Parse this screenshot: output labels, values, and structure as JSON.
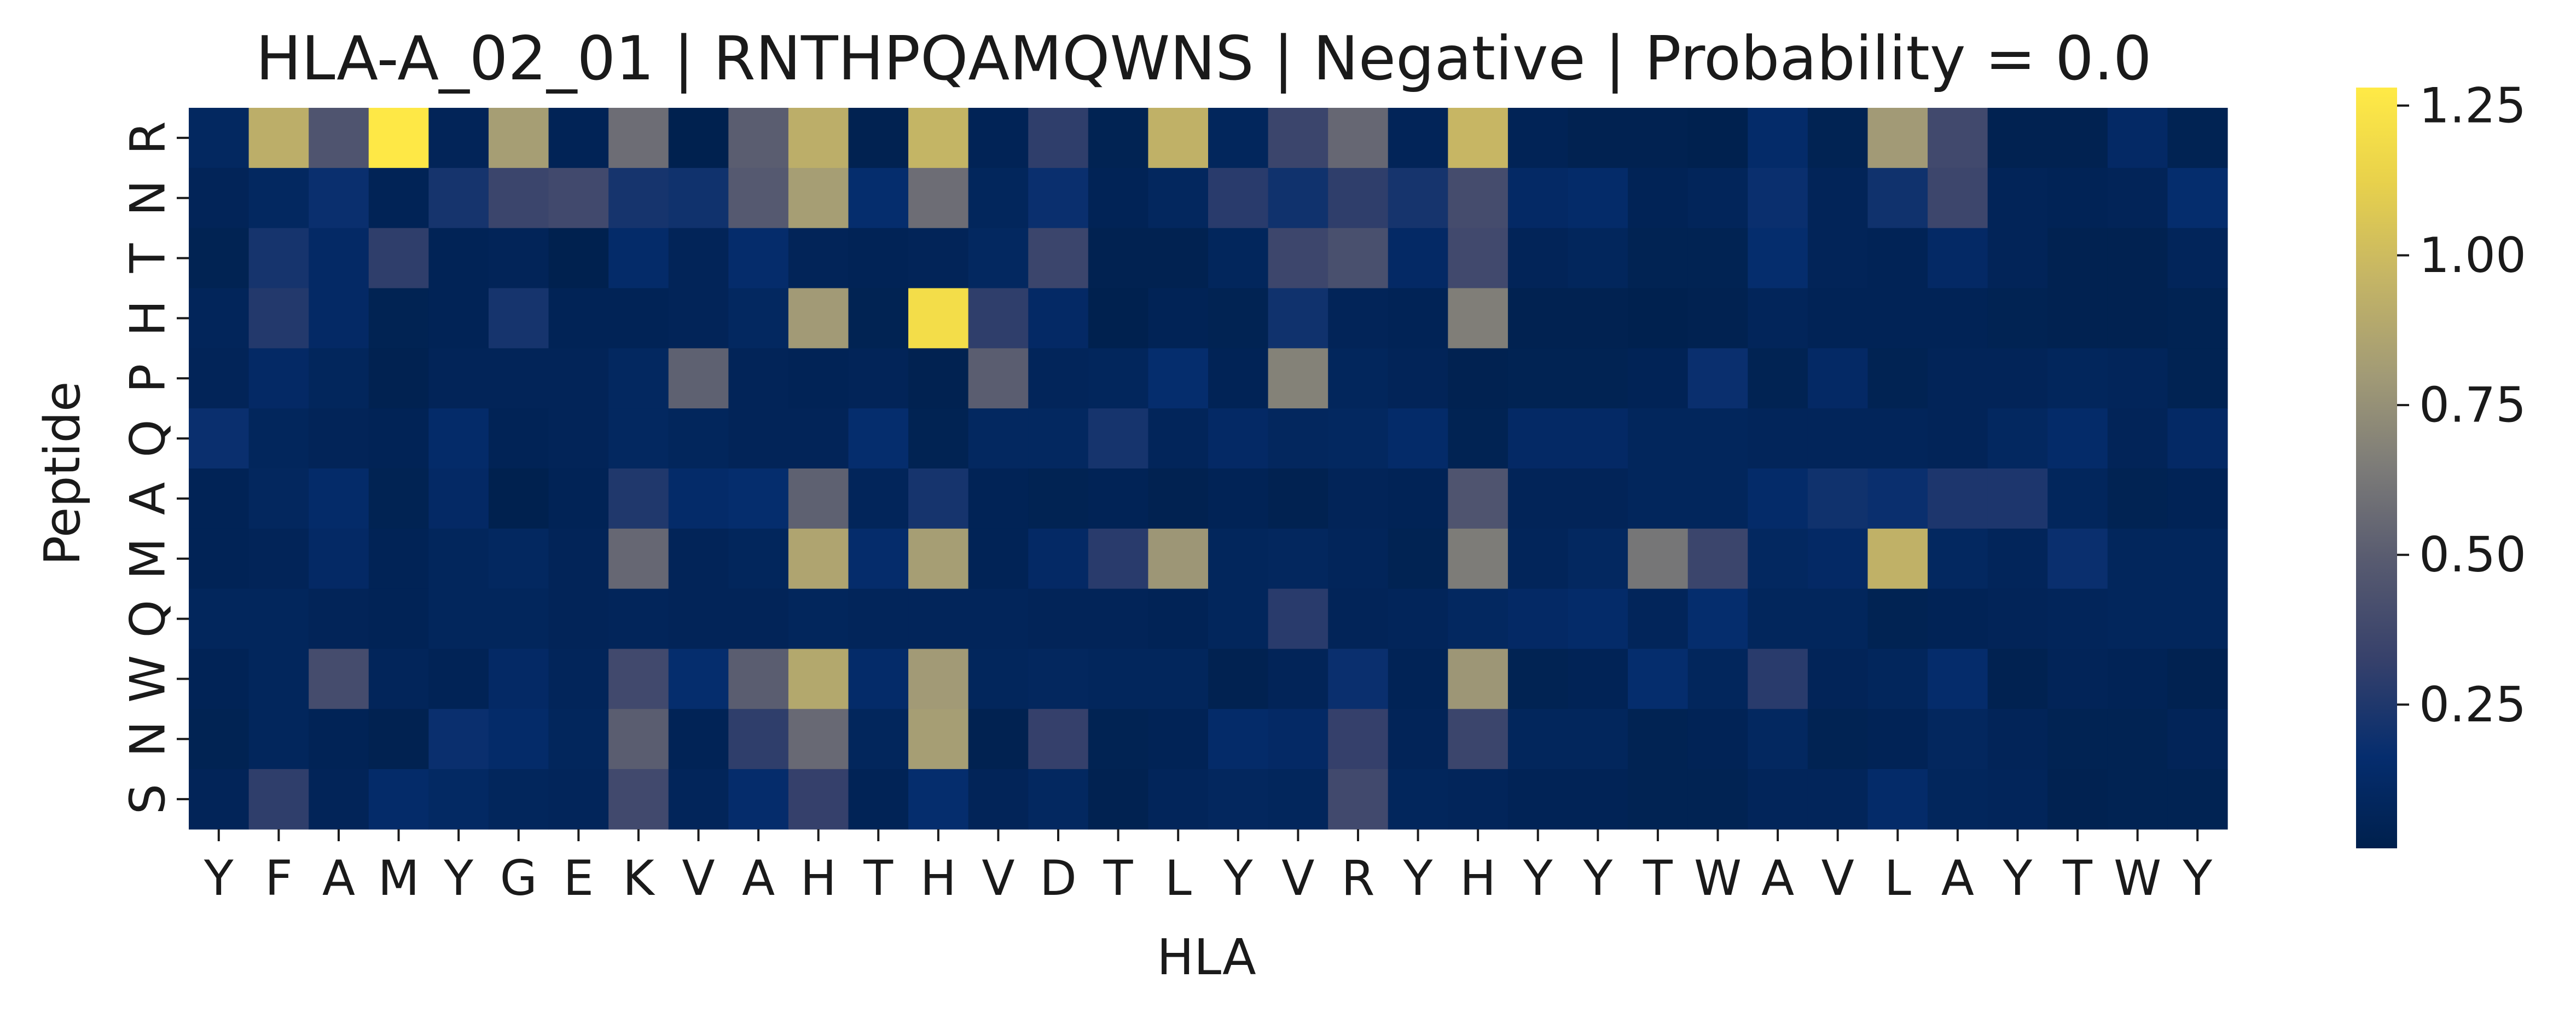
{
  "chart_data": {
    "type": "heatmap",
    "title": "HLA-A_02_01 | RNTHPQAMQWNS | Negative | Probability = 0.0",
    "xlabel": "HLA",
    "ylabel": "Peptide",
    "x_categories": [
      "Y",
      "F",
      "A",
      "M",
      "Y",
      "G",
      "E",
      "K",
      "V",
      "A",
      "H",
      "T",
      "H",
      "V",
      "D",
      "T",
      "L",
      "Y",
      "V",
      "R",
      "Y",
      "H",
      "Y",
      "Y",
      "T",
      "W",
      "A",
      "V",
      "L",
      "A",
      "Y",
      "T",
      "W",
      "Y"
    ],
    "y_categories": [
      "R",
      "N",
      "T",
      "H",
      "P",
      "Q",
      "A",
      "M",
      "Q",
      "W",
      "N",
      "S"
    ],
    "values": [
      [
        0.1,
        0.92,
        0.45,
        1.27,
        0.06,
        0.82,
        0.05,
        0.58,
        0.02,
        0.5,
        0.92,
        0.03,
        0.96,
        0.05,
        0.3,
        0.04,
        0.94,
        0.08,
        0.35,
        0.55,
        0.06,
        0.97,
        0.05,
        0.03,
        0.03,
        0.02,
        0.14,
        0.04,
        0.8,
        0.38,
        0.03,
        0.03,
        0.12,
        0.04
      ],
      [
        0.06,
        0.1,
        0.18,
        0.05,
        0.22,
        0.35,
        0.38,
        0.22,
        0.2,
        0.48,
        0.82,
        0.16,
        0.58,
        0.08,
        0.18,
        0.05,
        0.09,
        0.28,
        0.2,
        0.3,
        0.22,
        0.4,
        0.12,
        0.14,
        0.05,
        0.07,
        0.18,
        0.06,
        0.2,
        0.36,
        0.06,
        0.05,
        0.06,
        0.16
      ],
      [
        0.04,
        0.22,
        0.12,
        0.3,
        0.05,
        0.06,
        0.02,
        0.14,
        0.06,
        0.15,
        0.06,
        0.05,
        0.06,
        0.1,
        0.35,
        0.03,
        0.03,
        0.08,
        0.36,
        0.42,
        0.12,
        0.38,
        0.06,
        0.08,
        0.04,
        0.04,
        0.16,
        0.06,
        0.05,
        0.12,
        0.06,
        0.03,
        0.03,
        0.07
      ],
      [
        0.07,
        0.26,
        0.12,
        0.04,
        0.05,
        0.22,
        0.05,
        0.05,
        0.06,
        0.1,
        0.8,
        0.04,
        1.2,
        0.3,
        0.12,
        0.02,
        0.05,
        0.04,
        0.2,
        0.06,
        0.05,
        0.66,
        0.03,
        0.03,
        0.02,
        0.03,
        0.07,
        0.05,
        0.05,
        0.05,
        0.04,
        0.03,
        0.03,
        0.04
      ],
      [
        0.06,
        0.12,
        0.08,
        0.03,
        0.06,
        0.06,
        0.06,
        0.1,
        0.52,
        0.06,
        0.05,
        0.06,
        0.03,
        0.5,
        0.07,
        0.08,
        0.16,
        0.05,
        0.68,
        0.08,
        0.06,
        0.03,
        0.04,
        0.04,
        0.05,
        0.18,
        0.04,
        0.12,
        0.04,
        0.06,
        0.06,
        0.08,
        0.07,
        0.04
      ],
      [
        0.18,
        0.08,
        0.06,
        0.05,
        0.14,
        0.05,
        0.06,
        0.1,
        0.08,
        0.06,
        0.06,
        0.16,
        0.04,
        0.1,
        0.1,
        0.22,
        0.07,
        0.12,
        0.09,
        0.1,
        0.14,
        0.04,
        0.12,
        0.12,
        0.08,
        0.08,
        0.07,
        0.07,
        0.07,
        0.06,
        0.1,
        0.14,
        0.06,
        0.12
      ],
      [
        0.05,
        0.09,
        0.14,
        0.04,
        0.12,
        0.02,
        0.05,
        0.25,
        0.14,
        0.16,
        0.52,
        0.07,
        0.22,
        0.05,
        0.04,
        0.05,
        0.03,
        0.05,
        0.03,
        0.06,
        0.05,
        0.45,
        0.06,
        0.06,
        0.08,
        0.08,
        0.14,
        0.2,
        0.18,
        0.24,
        0.24,
        0.08,
        0.04,
        0.05
      ],
      [
        0.05,
        0.06,
        0.12,
        0.05,
        0.08,
        0.1,
        0.06,
        0.55,
        0.06,
        0.08,
        0.86,
        0.15,
        0.82,
        0.05,
        0.12,
        0.28,
        0.78,
        0.08,
        0.09,
        0.07,
        0.04,
        0.65,
        0.07,
        0.1,
        0.62,
        0.35,
        0.1,
        0.12,
        0.94,
        0.1,
        0.07,
        0.18,
        0.08,
        0.08
      ],
      [
        0.08,
        0.08,
        0.06,
        0.05,
        0.08,
        0.08,
        0.06,
        0.07,
        0.06,
        0.06,
        0.08,
        0.07,
        0.07,
        0.07,
        0.06,
        0.06,
        0.05,
        0.08,
        0.28,
        0.06,
        0.07,
        0.1,
        0.12,
        0.14,
        0.07,
        0.16,
        0.08,
        0.08,
        0.04,
        0.05,
        0.06,
        0.07,
        0.08,
        0.08
      ],
      [
        0.05,
        0.08,
        0.4,
        0.07,
        0.05,
        0.12,
        0.07,
        0.38,
        0.16,
        0.5,
        0.88,
        0.14,
        0.8,
        0.08,
        0.09,
        0.08,
        0.08,
        0.03,
        0.06,
        0.18,
        0.05,
        0.78,
        0.04,
        0.05,
        0.16,
        0.08,
        0.28,
        0.06,
        0.08,
        0.15,
        0.03,
        0.06,
        0.05,
        0.03
      ],
      [
        0.04,
        0.08,
        0.05,
        0.03,
        0.18,
        0.14,
        0.08,
        0.5,
        0.05,
        0.3,
        0.56,
        0.08,
        0.82,
        0.03,
        0.32,
        0.04,
        0.05,
        0.14,
        0.12,
        0.32,
        0.06,
        0.35,
        0.08,
        0.08,
        0.04,
        0.05,
        0.1,
        0.04,
        0.05,
        0.09,
        0.06,
        0.04,
        0.04,
        0.06
      ],
      [
        0.06,
        0.3,
        0.06,
        0.14,
        0.11,
        0.08,
        0.07,
        0.38,
        0.07,
        0.15,
        0.32,
        0.05,
        0.16,
        0.06,
        0.1,
        0.03,
        0.07,
        0.09,
        0.08,
        0.38,
        0.08,
        0.07,
        0.05,
        0.05,
        0.04,
        0.04,
        0.07,
        0.07,
        0.14,
        0.08,
        0.07,
        0.03,
        0.04,
        0.04
      ]
    ],
    "colormap": "cividis",
    "colorbar_range": [
      0.01,
      1.28
    ],
    "colorbar_ticks": [
      "0.25",
      "0.50",
      "0.75",
      "1.00",
      "1.25"
    ],
    "colorbar_tick_values": [
      0.25,
      0.5,
      0.75,
      1.0,
      1.25
    ],
    "grid": false,
    "legend": "colorbar-right"
  }
}
